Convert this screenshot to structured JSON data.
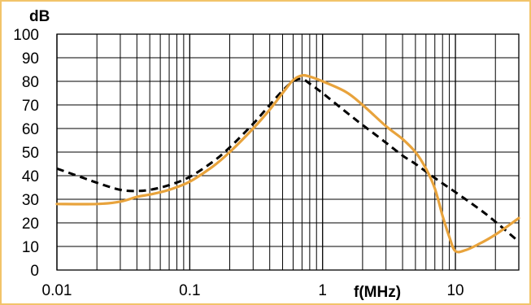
{
  "chart_data": {
    "type": "line",
    "x_scale": "log",
    "xlim": [
      0.01,
      30
    ],
    "ylim": [
      0,
      100
    ],
    "grid": true,
    "ylabel": "dB",
    "xlabel": "f(MHz)",
    "y_ticks": [
      "0",
      "10",
      "20",
      "30",
      "40",
      "50",
      "60",
      "70",
      "80",
      "90",
      "100"
    ],
    "x_ticks": [
      {
        "value": 0.01,
        "label": "0.01"
      },
      {
        "value": 0.1,
        "label": "0.1"
      },
      {
        "value": 1,
        "label": "1"
      },
      {
        "value": 10,
        "label": "10"
      }
    ],
    "series": [
      {
        "style": "dashed",
        "color": "#000000",
        "x": [
          0.01,
          0.015,
          0.02,
          0.03,
          0.04,
          0.05,
          0.07,
          0.1,
          0.15,
          0.2,
          0.3,
          0.4,
          0.5,
          0.6,
          0.7,
          0.8,
          1,
          1.5,
          2,
          3,
          4,
          5,
          7,
          10,
          15,
          20,
          30
        ],
        "y": [
          43,
          39.5,
          37,
          34,
          33.5,
          34,
          36,
          39.5,
          46,
          52,
          62,
          70,
          76,
          80,
          81,
          79,
          75,
          67,
          61.5,
          54,
          48.5,
          45,
          39,
          33,
          26,
          20.5,
          12
        ]
      },
      {
        "style": "solid",
        "color": "#e8a33c",
        "x": [
          0.01,
          0.02,
          0.03,
          0.04,
          0.05,
          0.07,
          0.1,
          0.15,
          0.2,
          0.3,
          0.4,
          0.5,
          0.6,
          0.7,
          0.8,
          1,
          1.5,
          2,
          3,
          4,
          5,
          6,
          7,
          8,
          9,
          10,
          12,
          15,
          20,
          30
        ],
        "y": [
          28,
          28,
          29,
          31,
          32,
          34,
          37.5,
          44,
          50,
          60,
          68,
          75,
          80.5,
          82.5,
          82,
          80,
          75.5,
          70,
          61,
          55.5,
          50,
          43,
          34.5,
          23,
          14,
          8,
          8.5,
          11,
          15,
          22
        ]
      }
    ]
  }
}
